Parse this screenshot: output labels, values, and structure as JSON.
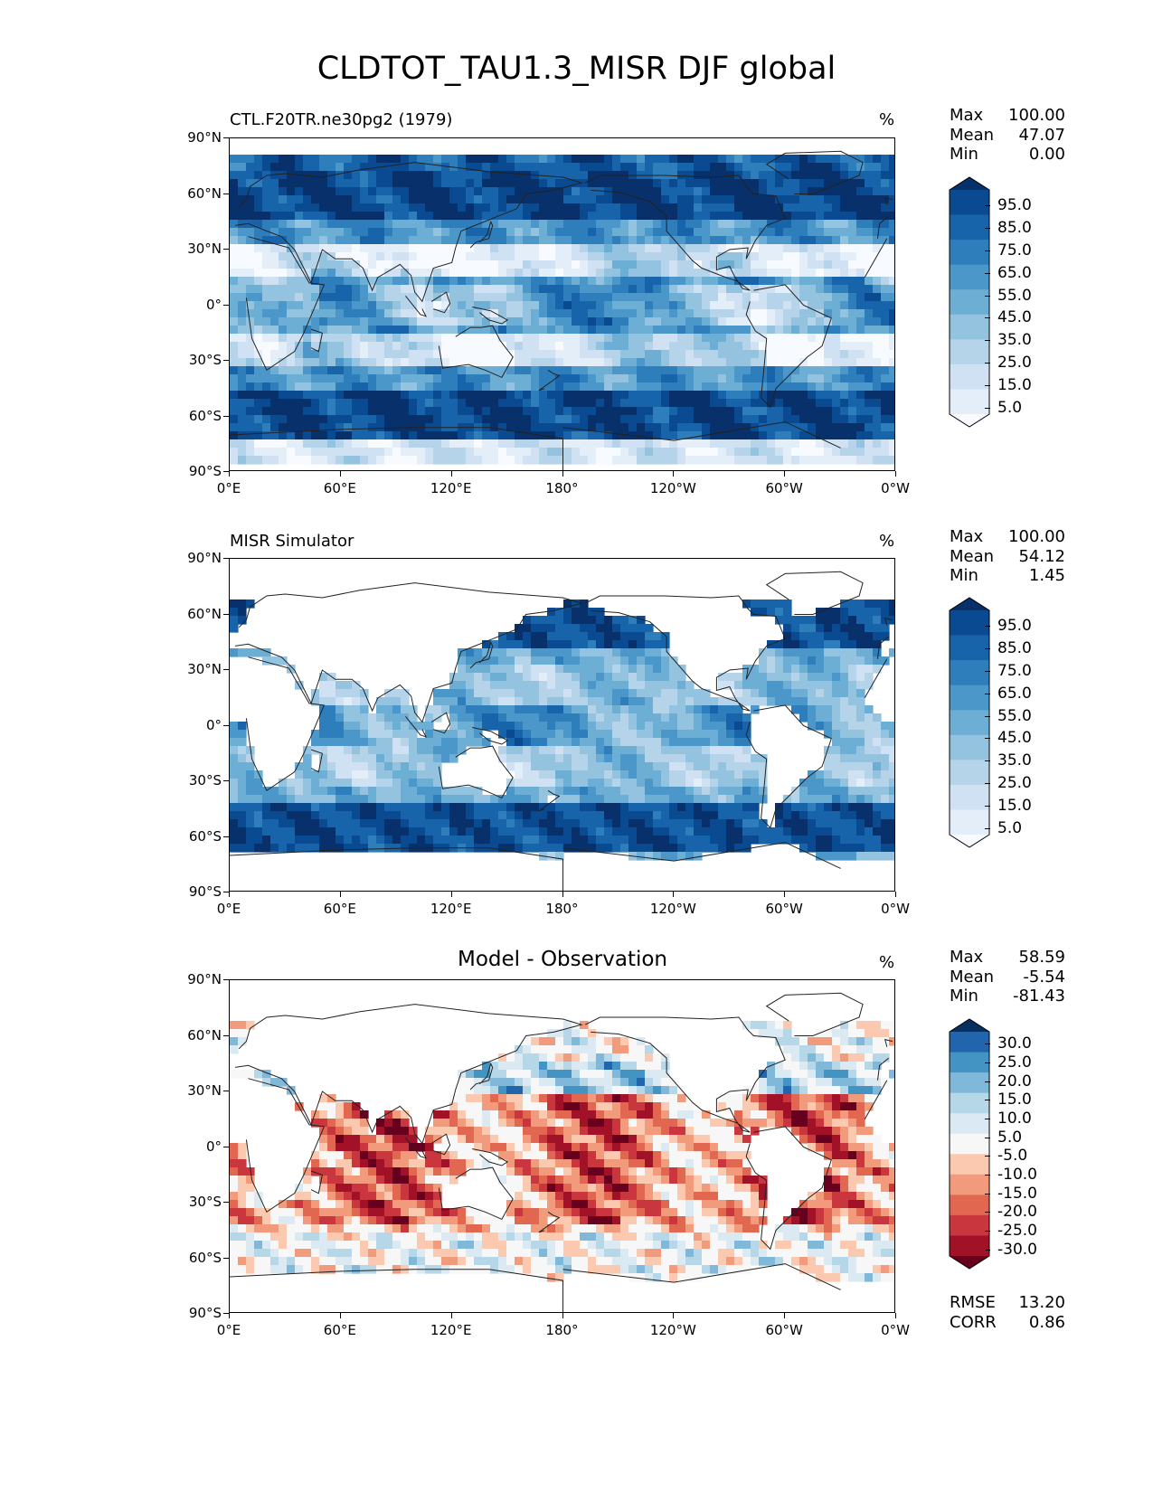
{
  "title": "CLDTOT_TAU1.3_MISR DJF global",
  "x_ticks": [
    "0°E",
    "60°E",
    "120°E",
    "180°",
    "120°W",
    "60°W",
    "0°W"
  ],
  "y_ticks": [
    "90°N",
    "60°N",
    "30°N",
    "0°",
    "30°S",
    "60°S",
    "90°S"
  ],
  "colors": {
    "blues": [
      "#f7fbff",
      "#e3eef9",
      "#cfe1f2",
      "#b5d4e9",
      "#93c3df",
      "#6daed5",
      "#4b97c9",
      "#2f7ebc",
      "#1864aa",
      "#0a4a90",
      "#08306b"
    ],
    "rdbu": [
      "#67001f",
      "#a11228",
      "#c9363e",
      "#e16751",
      "#f19b7c",
      "#fbc9af",
      "#f7f7f7",
      "#dbeaf2",
      "#b6d7e8",
      "#7fb8d8",
      "#4393c3",
      "#2166ac",
      "#053061"
    ]
  },
  "panels": [
    {
      "title": "CTL.F20TR.ne30pg2 (1979)",
      "units": "%",
      "stats": [
        {
          "label": "Max",
          "value": "100.00"
        },
        {
          "label": "Mean",
          "value": "47.07"
        },
        {
          "label": "Min",
          "value": "0.00"
        }
      ],
      "colorbar_labels": [
        "95.0",
        "85.0",
        "75.0",
        "65.0",
        "55.0",
        "45.0",
        "35.0",
        "25.0",
        "15.0",
        "5.0"
      ],
      "palette": "blues",
      "field": "model"
    },
    {
      "title": "MISR Simulator",
      "units": "%",
      "stats": [
        {
          "label": "Max",
          "value": "100.00"
        },
        {
          "label": "Mean",
          "value": "54.12"
        },
        {
          "label": "Min",
          "value": "1.45"
        }
      ],
      "colorbar_labels": [
        "95.0",
        "85.0",
        "75.0",
        "65.0",
        "55.0",
        "45.0",
        "35.0",
        "25.0",
        "15.0",
        "5.0"
      ],
      "palette": "blues",
      "field": "obs"
    },
    {
      "title": "Model - Observation",
      "units": "%",
      "stats": [
        {
          "label": "Max",
          "value": "58.59"
        },
        {
          "label": "Mean",
          "value": "-5.54"
        },
        {
          "label": "Min",
          "value": "-81.43"
        }
      ],
      "colorbar_labels": [
        "30.0",
        "25.0",
        "20.0",
        "15.0",
        "10.0",
        "5.0",
        "-5.0",
        "-10.0",
        "-15.0",
        "-20.0",
        "-25.0",
        "-30.0"
      ],
      "palette": "rdbu",
      "field": "diff",
      "extra_stats": [
        {
          "label": "RMSE",
          "value": "13.20"
        },
        {
          "label": "CORR",
          "value": "0.86"
        }
      ]
    }
  ]
}
